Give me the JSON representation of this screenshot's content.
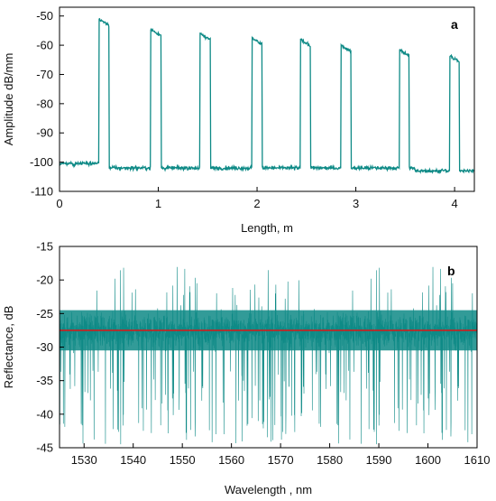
{
  "colors": {
    "trace": "#0e8a86",
    "reference_line": "#d01c1c",
    "axes": "#000000"
  },
  "chart_data": [
    {
      "type": "line",
      "panel_label": "a",
      "xlabel": "Length, m",
      "ylabel": "Amplitude dB/mm",
      "xlim": [
        0,
        4.2
      ],
      "ylim": [
        -110,
        -47
      ],
      "xticks": [
        0,
        1,
        2,
        3,
        4
      ],
      "yticks": [
        -110,
        -100,
        -90,
        -80,
        -70,
        -60,
        -50
      ],
      "baseline": -102,
      "pulses": [
        {
          "start": 0.4,
          "end": 0.5,
          "peak": -51
        },
        {
          "start": 0.92,
          "end": 1.03,
          "peak": -54.5
        },
        {
          "start": 1.42,
          "end": 1.53,
          "peak": -56
        },
        {
          "start": 1.95,
          "end": 2.05,
          "peak": -57.5
        },
        {
          "start": 2.44,
          "end": 2.54,
          "peak": -58
        },
        {
          "start": 2.85,
          "end": 2.95,
          "peak": -60
        },
        {
          "start": 3.44,
          "end": 3.54,
          "peak": -61.5
        },
        {
          "start": 3.95,
          "end": 4.05,
          "peak": -63.5
        }
      ],
      "grid": false
    },
    {
      "type": "line",
      "panel_label": "b",
      "xlabel": "Wavelength , nm",
      "ylabel": "Reflectance, dB",
      "xlim": [
        1525,
        1610
      ],
      "ylim": [
        -45,
        -15
      ],
      "xticks": [
        1530,
        1540,
        1550,
        1560,
        1570,
        1580,
        1590,
        1600,
        1610
      ],
      "yticks": [
        -45,
        -40,
        -35,
        -30,
        -25,
        -20,
        -15
      ],
      "noise_mean": -27.5,
      "noise_band": [
        -30.5,
        -24.5
      ],
      "noise_range": [
        -45,
        -18
      ],
      "reference_level": -27.5,
      "grid": false
    }
  ]
}
